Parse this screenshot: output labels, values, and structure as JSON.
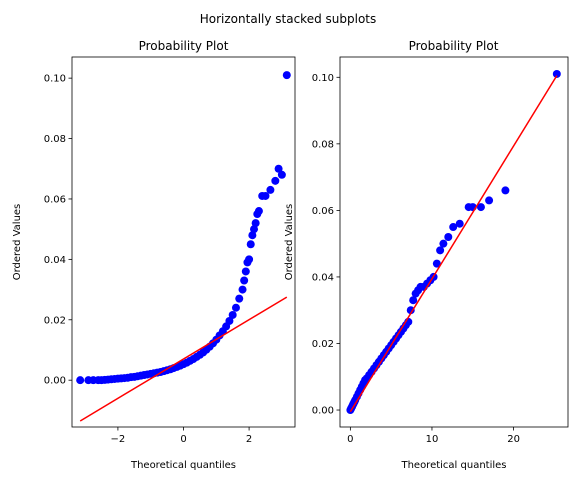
{
  "figure": {
    "suptitle": "Horizontally stacked subplots"
  },
  "colors": {
    "points": "#0000ff",
    "fit_line": "#ff0000",
    "frame": "#000000"
  },
  "chart_data": [
    {
      "type": "scatter",
      "title": "Probability Plot",
      "xlabel": "Theoretical quantiles",
      "ylabel": "Ordered Values",
      "xlim": [
        -3.4,
        3.4
      ],
      "ylim": [
        -0.0155,
        0.107
      ],
      "xticks": [
        -2,
        0,
        2
      ],
      "xtick_labels": [
        "−2",
        "0",
        "2"
      ],
      "yticks": [
        0.0,
        0.02,
        0.04,
        0.06,
        0.08,
        0.1
      ],
      "ytick_labels": [
        "0.00",
        "0.02",
        "0.04",
        "0.06",
        "0.08",
        "0.10"
      ],
      "grid": false,
      "series": [
        {
          "kind": "points",
          "x": [
            -3.15,
            -2.9,
            -2.75,
            -2.6,
            -2.5,
            -2.4,
            -2.3,
            -2.2,
            -2.1,
            -2.0,
            -1.9,
            -1.8,
            -1.7,
            -1.6,
            -1.5,
            -1.4,
            -1.3,
            -1.2,
            -1.1,
            -1.0,
            -0.9,
            -0.8,
            -0.7,
            -0.6,
            -0.5,
            -0.4,
            -0.3,
            -0.2,
            -0.1,
            0.0,
            0.1,
            0.2,
            0.3,
            0.4,
            0.5,
            0.6,
            0.7,
            0.8,
            0.9,
            1.0,
            1.1,
            1.2,
            1.3,
            1.4,
            1.5,
            1.6,
            1.7,
            1.8,
            1.85,
            1.9,
            1.95,
            2.0,
            2.05,
            2.1,
            2.15,
            2.2,
            2.25,
            2.3,
            2.4,
            2.5,
            2.65,
            2.8,
            2.9,
            3.0,
            3.15
          ],
          "y": [
            0.0,
            0.0,
            0.0,
            0.0,
            0.0,
            0.0001,
            0.0002,
            0.0003,
            0.0004,
            0.0005,
            0.0006,
            0.0007,
            0.0008,
            0.001,
            0.0011,
            0.0013,
            0.0015,
            0.0017,
            0.0019,
            0.0021,
            0.0023,
            0.0025,
            0.0027,
            0.003,
            0.0033,
            0.0036,
            0.004,
            0.0044,
            0.0048,
            0.0053,
            0.0058,
            0.0064,
            0.007,
            0.0077,
            0.0084,
            0.0092,
            0.0101,
            0.0111,
            0.0122,
            0.0134,
            0.0148,
            0.0162,
            0.0178,
            0.0196,
            0.0216,
            0.024,
            0.027,
            0.03,
            0.033,
            0.036,
            0.039,
            0.04,
            0.045,
            0.048,
            0.05,
            0.052,
            0.055,
            0.056,
            0.061,
            0.061,
            0.063,
            0.066,
            0.07,
            0.068,
            0.101
          ]
        },
        {
          "kind": "line",
          "x": [
            -3.15,
            3.15
          ],
          "y": [
            -0.0135,
            0.0275
          ]
        }
      ]
    },
    {
      "type": "scatter",
      "title": "Probability Plot",
      "xlabel": "Theoretical quantiles",
      "ylabel": "Ordered Values",
      "xlim": [
        -1.27,
        26.67
      ],
      "ylim": [
        -0.0051,
        0.1061
      ],
      "xticks": [
        0,
        10,
        20
      ],
      "xtick_labels": [
        "0",
        "10",
        "20"
      ],
      "yticks": [
        0.0,
        0.02,
        0.04,
        0.06,
        0.08,
        0.1
      ],
      "ytick_labels": [
        "0.00",
        "0.02",
        "0.04",
        "0.06",
        "0.08",
        "0.10"
      ],
      "grid": false,
      "series": [
        {
          "kind": "points",
          "x": [
            0.0,
            0.1,
            0.2,
            0.3,
            0.4,
            0.5,
            0.6,
            0.8,
            1.0,
            1.2,
            1.4,
            1.6,
            1.8,
            2.0,
            2.3,
            2.6,
            2.9,
            3.2,
            3.5,
            3.8,
            4.1,
            4.4,
            4.7,
            5.0,
            5.3,
            5.6,
            5.9,
            6.2,
            6.5,
            6.8,
            7.1,
            7.4,
            7.7,
            8.0,
            8.3,
            8.6,
            9.0,
            9.4,
            9.8,
            10.2,
            10.6,
            11.0,
            11.4,
            12.0,
            12.6,
            13.4,
            14.5,
            15.0,
            16.0,
            17.0,
            19.0,
            25.3
          ],
          "y": [
            0.0,
            0.0005,
            0.001,
            0.0015,
            0.002,
            0.0025,
            0.003,
            0.004,
            0.005,
            0.006,
            0.007,
            0.008,
            0.009,
            0.0095,
            0.0105,
            0.0115,
            0.0125,
            0.0135,
            0.0145,
            0.0155,
            0.0165,
            0.0175,
            0.0185,
            0.0195,
            0.0205,
            0.0215,
            0.0225,
            0.0235,
            0.0245,
            0.0255,
            0.0265,
            0.03,
            0.033,
            0.035,
            0.036,
            0.037,
            0.037,
            0.038,
            0.039,
            0.04,
            0.044,
            0.048,
            0.05,
            0.052,
            0.055,
            0.056,
            0.061,
            0.061,
            0.061,
            0.063,
            0.066,
            0.101
          ]
        },
        {
          "kind": "line",
          "x": [
            0.0,
            25.3
          ],
          "y": [
            -0.0005,
            0.1005
          ]
        }
      ]
    }
  ]
}
